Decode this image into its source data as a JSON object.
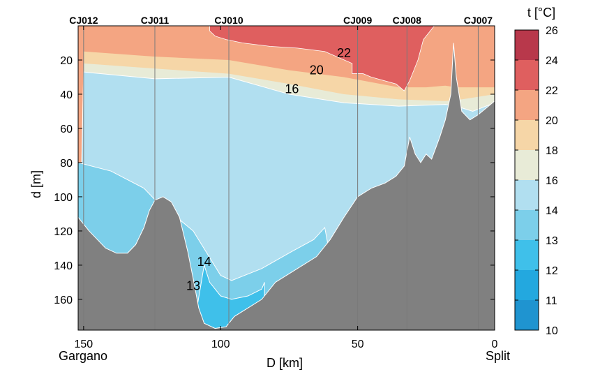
{
  "chart_data": {
    "type": "heatmap",
    "title": "",
    "xlabel": "D [km]",
    "ylabel": "d [m]",
    "xlim": [
      152,
      0
    ],
    "ylim": [
      0,
      178
    ],
    "xticks": [
      150,
      100,
      50,
      0
    ],
    "yticks": [
      20,
      40,
      60,
      80,
      100,
      120,
      140,
      160
    ],
    "x_endpoints": {
      "left": "Gargano",
      "right": "Split"
    },
    "colorbar": {
      "label": "t [°C]",
      "ticks": [
        10,
        11,
        12,
        13,
        14,
        16,
        18,
        20,
        22,
        24,
        26
      ],
      "bins": [
        {
          "from": 10,
          "to": 11,
          "color": "#1f94d0"
        },
        {
          "from": 11,
          "to": 12,
          "color": "#23a8df"
        },
        {
          "from": 12,
          "to": 13,
          "color": "#3fc0ea"
        },
        {
          "from": 13,
          "to": 14,
          "color": "#7ccfea"
        },
        {
          "from": 14,
          "to": 16,
          "color": "#b1dff0"
        },
        {
          "from": 16,
          "to": 18,
          "color": "#e8ebd7"
        },
        {
          "from": 18,
          "to": 20,
          "color": "#f6d6a7"
        },
        {
          "from": 20,
          "to": 22,
          "color": "#f4a582"
        },
        {
          "from": 22,
          "to": 24,
          "color": "#df5f5f"
        },
        {
          "from": 24,
          "to": 26,
          "color": "#b8384b"
        }
      ]
    },
    "stations": [
      {
        "name": "CJ012",
        "distance_km": 150
      },
      {
        "name": "CJ011",
        "distance_km": 124
      },
      {
        "name": "CJ010",
        "distance_km": 97
      },
      {
        "name": "CJ009",
        "distance_km": 50
      },
      {
        "name": "CJ008",
        "distance_km": 32
      },
      {
        "name": "CJ007",
        "distance_km": 6
      }
    ],
    "contour_labels": [
      {
        "text": "22",
        "distance_km": 55,
        "depth_m": 16
      },
      {
        "text": "20",
        "distance_km": 65,
        "depth_m": 26
      },
      {
        "text": "16",
        "distance_km": 74,
        "depth_m": 37
      },
      {
        "text": "14",
        "distance_km": 106,
        "depth_m": 138
      },
      {
        "text": "13",
        "distance_km": 110,
        "depth_m": 152
      }
    ],
    "layers": [
      {
        "temp_range": "22-24",
        "color": "#df5f5f",
        "top": [
          [
            104,
            0
          ],
          [
            42,
            0
          ],
          [
            22,
            0
          ],
          [
            26,
            8
          ],
          [
            28,
            20
          ],
          [
            31,
            32
          ],
          [
            33,
            38
          ],
          [
            36,
            34
          ],
          [
            45,
            30
          ],
          [
            48,
            28
          ],
          [
            52,
            28
          ],
          [
            52,
            22
          ],
          [
            62,
            15
          ],
          [
            72,
            13
          ],
          [
            82,
            12
          ],
          [
            92,
            10
          ],
          [
            98,
            8
          ],
          [
            102,
            6
          ],
          [
            104,
            3
          ],
          [
            104,
            0
          ]
        ]
      },
      {
        "temp_range": "20-22",
        "boundary_depth": [
          [
            150,
            15
          ],
          [
            124,
            18
          ],
          [
            97,
            20
          ],
          [
            75,
            26
          ],
          [
            55,
            30
          ],
          [
            35,
            36
          ],
          [
            25,
            36
          ],
          [
            18,
            35
          ],
          [
            14,
            36
          ],
          [
            8,
            36
          ],
          [
            0,
            36
          ]
        ]
      },
      {
        "temp_range": "18-20",
        "boundary_depth": [
          [
            150,
            22
          ],
          [
            124,
            25
          ],
          [
            97,
            28
          ],
          [
            75,
            34
          ],
          [
            55,
            40
          ],
          [
            35,
            43
          ],
          [
            18,
            44
          ],
          [
            12,
            43
          ],
          [
            0,
            40
          ]
        ]
      },
      {
        "temp_range": "16-18",
        "boundary_depth": [
          [
            150,
            27
          ],
          [
            124,
            31
          ],
          [
            97,
            30
          ],
          [
            75,
            40
          ],
          [
            55,
            45
          ],
          [
            35,
            47
          ],
          [
            18,
            46
          ],
          [
            14,
            47
          ],
          [
            8,
            50
          ],
          [
            0,
            45
          ]
        ]
      },
      {
        "temp_range": "13-14",
        "boundary_depth": [
          [
            152,
            80
          ],
          [
            140,
            85
          ],
          [
            128,
            95
          ],
          [
            122,
            105
          ],
          [
            116,
            112
          ],
          [
            110,
            120
          ],
          [
            105,
            133
          ],
          [
            100,
            146
          ],
          [
            96,
            149
          ],
          [
            85,
            142
          ],
          [
            74,
            132
          ],
          [
            66,
            125
          ],
          [
            62,
            118
          ]
        ]
      },
      {
        "temp_range": "12-13",
        "boundary_depth": [
          [
            106,
            140
          ],
          [
            104,
            150
          ],
          [
            100,
            158
          ],
          [
            96,
            160
          ],
          [
            90,
            158
          ],
          [
            85,
            154
          ],
          [
            84,
            150
          ]
        ]
      }
    ],
    "bathymetry_depth_m": [
      [
        152,
        112
      ],
      [
        148,
        120
      ],
      [
        145,
        125
      ],
      [
        142,
        130
      ],
      [
        138,
        133
      ],
      [
        134,
        133
      ],
      [
        131,
        128
      ],
      [
        128,
        118
      ],
      [
        126,
        108
      ],
      [
        124,
        102
      ],
      [
        121,
        100
      ],
      [
        118,
        103
      ],
      [
        115,
        112
      ],
      [
        112,
        132
      ],
      [
        110,
        148
      ],
      [
        108,
        165
      ],
      [
        106,
        174
      ],
      [
        102,
        177
      ],
      [
        98,
        176
      ],
      [
        95,
        170
      ],
      [
        90,
        165
      ],
      [
        85,
        160
      ],
      [
        80,
        150
      ],
      [
        75,
        145
      ],
      [
        70,
        140
      ],
      [
        65,
        135
      ],
      [
        60,
        125
      ],
      [
        55,
        112
      ],
      [
        50,
        100
      ],
      [
        45,
        95
      ],
      [
        40,
        92
      ],
      [
        36,
        88
      ],
      [
        33,
        82
      ],
      [
        31,
        65
      ],
      [
        29,
        75
      ],
      [
        27,
        80
      ],
      [
        25,
        75
      ],
      [
        23,
        78
      ],
      [
        20,
        65
      ],
      [
        18,
        55
      ],
      [
        16,
        40
      ],
      [
        15,
        10
      ],
      [
        14,
        30
      ],
      [
        12,
        50
      ],
      [
        9,
        55
      ],
      [
        6,
        52
      ],
      [
        3,
        48
      ],
      [
        0,
        44
      ]
    ]
  }
}
